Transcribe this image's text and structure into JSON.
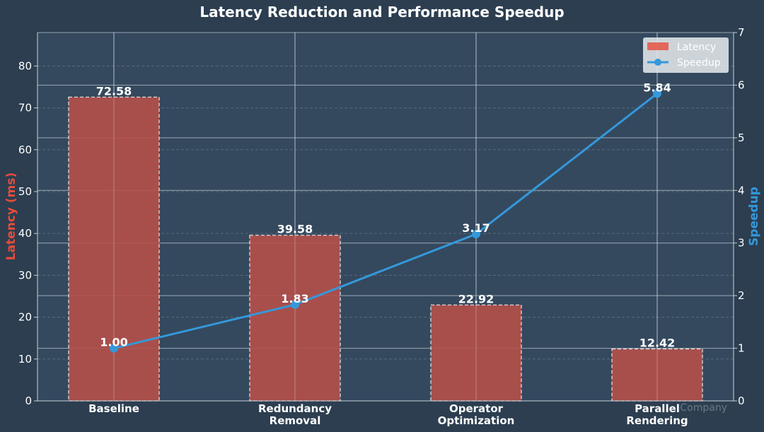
{
  "chart_data": {
    "type": "bar+line",
    "title": "Latency Reduction and Performance Speedup",
    "categories": [
      [
        "Baseline"
      ],
      [
        "Redundancy",
        "Removal"
      ],
      [
        "Operator",
        "Optimization"
      ],
      [
        "Parallel",
        "Rendering"
      ]
    ],
    "ylabel_left": "Latency (ms)",
    "ylabel_right": "Speedup",
    "ylim_left": [
      0,
      88
    ],
    "ylim_right": [
      0,
      7
    ],
    "yticks_left": [
      0,
      10,
      20,
      30,
      40,
      50,
      60,
      70,
      80
    ],
    "yticks_right": [
      0,
      1,
      2,
      3,
      4,
      5,
      6,
      7
    ],
    "grid": true,
    "legend_position": "top-right",
    "series": [
      {
        "name": "Latency",
        "type": "bar",
        "axis": "left",
        "values": [
          72.58,
          39.58,
          22.92,
          12.42
        ],
        "labels": [
          "72.58",
          "39.58",
          "22.92",
          "12.42"
        ]
      },
      {
        "name": "Speedup",
        "type": "line",
        "axis": "right",
        "values": [
          1.0,
          1.83,
          3.17,
          5.84
        ],
        "labels": [
          "1.00",
          "1.83",
          "3.17",
          "5.84"
        ]
      }
    ],
    "watermark": "Company"
  },
  "colors": {
    "background": "#2c3e50",
    "plot_background": "#34495e",
    "latency": "#b5504a",
    "latency_axis": "#e74c3c",
    "speedup": "#3498db",
    "text": "#ffffff",
    "grid": "#c8d0d8"
  }
}
